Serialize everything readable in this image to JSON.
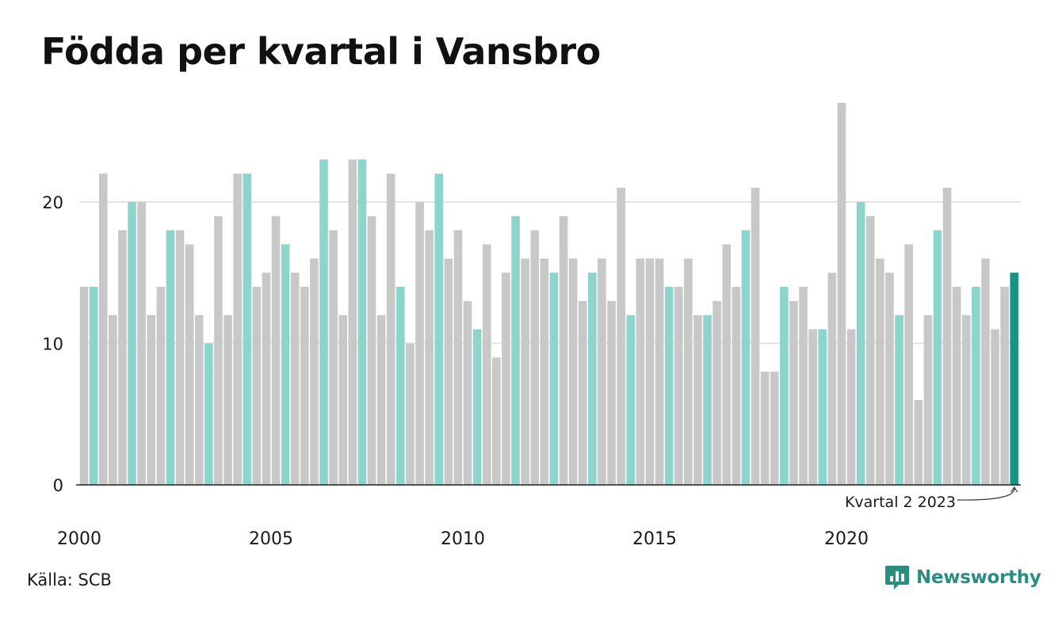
{
  "header": {
    "title": "Födda per kvartal i Vansbro"
  },
  "footer": {
    "source": "Källa: SCB",
    "brand": "Newsworthy"
  },
  "colors": {
    "other_quarter": "#c8c8c8",
    "q2_quarter": "#8dd5cc",
    "latest": "#1a9384",
    "gridline": "#e3e3e3",
    "axis": "#222222",
    "brand": "#2a8d7f"
  },
  "icons": {
    "brand": "newsworthy-logo-icon"
  },
  "chart_data": {
    "type": "bar",
    "title": "Födda per kvartal i Vansbro",
    "xlabel": "",
    "ylabel": "",
    "ylim": [
      0,
      28
    ],
    "yticks": [
      0,
      10,
      20
    ],
    "grid": true,
    "xtick_labels": [
      "2000",
      "2005",
      "2010",
      "2015",
      "2020"
    ],
    "start_year": 2000,
    "highlight_quarter": 2,
    "values": [
      14,
      14,
      22,
      12,
      18,
      20,
      20,
      12,
      14,
      18,
      18,
      17,
      12,
      10,
      19,
      12,
      22,
      22,
      14,
      15,
      19,
      17,
      15,
      14,
      16,
      23,
      18,
      12,
      23,
      23,
      19,
      12,
      22,
      14,
      10,
      20,
      18,
      22,
      16,
      18,
      13,
      11,
      17,
      9,
      15,
      19,
      16,
      18,
      16,
      15,
      19,
      16,
      13,
      15,
      16,
      13,
      21,
      12,
      16,
      16,
      16,
      14,
      14,
      16,
      12,
      12,
      13,
      17,
      14,
      18,
      21,
      8,
      8,
      14,
      13,
      14,
      11,
      11,
      15,
      27,
      11,
      20,
      19,
      16,
      15,
      12,
      17,
      6,
      12,
      18,
      21,
      14,
      12,
      14,
      16,
      11,
      14,
      15
    ],
    "annotation": {
      "label": "Kvartal 2 2023"
    }
  }
}
